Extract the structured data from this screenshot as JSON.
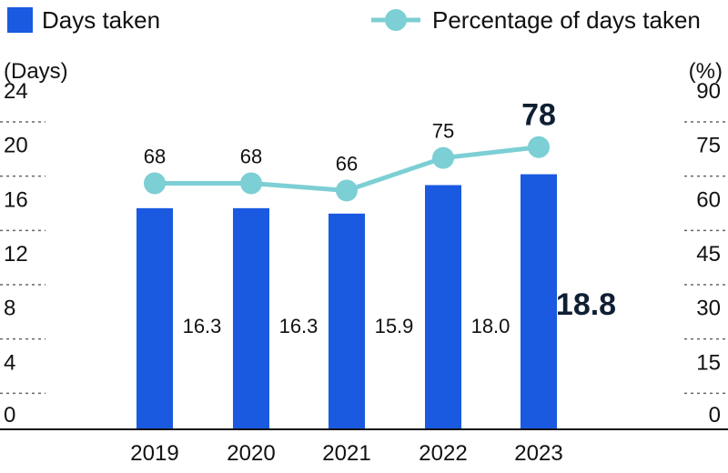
{
  "chart_data": {
    "type": "bar",
    "title": "",
    "categories": [
      "2019",
      "2020",
      "2021",
      "2022",
      "2023"
    ],
    "left_axis": {
      "unit_label": "(Days)",
      "min": 0,
      "max": 24,
      "ticks": [
        "0",
        "4",
        "8",
        "12",
        "16",
        "20",
        "24"
      ]
    },
    "right_axis": {
      "unit_label": "(%)",
      "min": 0,
      "max": 90,
      "ticks": [
        "0",
        "15",
        "30",
        "45",
        "60",
        "75",
        "90"
      ]
    },
    "grid": "dashed",
    "legend_position": "top",
    "series": [
      {
        "name": "Days taken",
        "type": "bar",
        "axis": "left",
        "color": "#1a5ae0",
        "values": [
          16.3,
          16.3,
          15.9,
          18.0,
          18.8
        ],
        "labels": [
          "16.3",
          "16.3",
          "15.9",
          "18.0",
          "18.8"
        ],
        "highlight_last": true
      },
      {
        "name": "Percentage of days taken",
        "type": "line",
        "axis": "right",
        "color": "#7ccfd4",
        "values": [
          68,
          68,
          66,
          75,
          78
        ],
        "labels": [
          "68",
          "68",
          "66",
          "75",
          "78"
        ],
        "highlight_last": true
      }
    ]
  }
}
